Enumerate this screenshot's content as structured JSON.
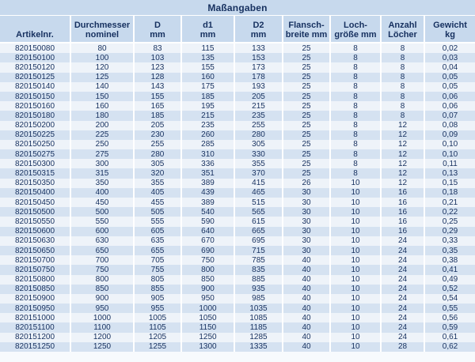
{
  "table": {
    "title": "Maßangaben",
    "columns": [
      {
        "id": "artikelnr",
        "lines": [
          "Artikelnr."
        ]
      },
      {
        "id": "durchmesser",
        "lines": [
          "Durchmesser",
          "nominel"
        ]
      },
      {
        "id": "d",
        "lines": [
          "D",
          "mm"
        ]
      },
      {
        "id": "d1",
        "lines": [
          "d1",
          "mm"
        ]
      },
      {
        "id": "d2",
        "lines": [
          "D2",
          "mm"
        ]
      },
      {
        "id": "flanschbreite",
        "lines": [
          "Flansch-",
          "breite mm"
        ]
      },
      {
        "id": "lochgroesse",
        "lines": [
          "Loch-",
          "größe mm"
        ]
      },
      {
        "id": "anzahl-loecher",
        "lines": [
          "Anzahl",
          "Löcher"
        ]
      },
      {
        "id": "gewicht",
        "lines": [
          "Gewicht",
          "kg"
        ]
      }
    ],
    "rows": [
      [
        "820150080",
        "80",
        "83",
        "115",
        "133",
        "25",
        "8",
        "8",
        "0,02"
      ],
      [
        "820150100",
        "100",
        "103",
        "135",
        "153",
        "25",
        "8",
        "8",
        "0,03"
      ],
      [
        "820150120",
        "120",
        "123",
        "155",
        "173",
        "25",
        "8",
        "8",
        "0,04"
      ],
      [
        "820150125",
        "125",
        "128",
        "160",
        "178",
        "25",
        "8",
        "8",
        "0,05"
      ],
      [
        "820150140",
        "140",
        "143",
        "175",
        "193",
        "25",
        "8",
        "8",
        "0,05"
      ],
      [
        "820150150",
        "150",
        "155",
        "185",
        "205",
        "25",
        "8",
        "8",
        "0,06"
      ],
      [
        "820150160",
        "160",
        "165",
        "195",
        "215",
        "25",
        "8",
        "8",
        "0,06"
      ],
      [
        "820150180",
        "180",
        "185",
        "215",
        "235",
        "25",
        "8",
        "8",
        "0,07"
      ],
      [
        "820150200",
        "200",
        "205",
        "235",
        "255",
        "25",
        "8",
        "12",
        "0,08"
      ],
      [
        "820150225",
        "225",
        "230",
        "260",
        "280",
        "25",
        "8",
        "12",
        "0,09"
      ],
      [
        "820150250",
        "250",
        "255",
        "285",
        "305",
        "25",
        "8",
        "12",
        "0,10"
      ],
      [
        "820150275",
        "275",
        "280",
        "310",
        "330",
        "25",
        "8",
        "12",
        "0,10"
      ],
      [
        "820150300",
        "300",
        "305",
        "336",
        "355",
        "25",
        "8",
        "12",
        "0,11"
      ],
      [
        "820150315",
        "315",
        "320",
        "351",
        "370",
        "25",
        "8",
        "12",
        "0,13"
      ],
      [
        "820150350",
        "350",
        "355",
        "389",
        "415",
        "26",
        "10",
        "12",
        "0,15"
      ],
      [
        "820150400",
        "400",
        "405",
        "439",
        "465",
        "30",
        "10",
        "16",
        "0,18"
      ],
      [
        "820150450",
        "450",
        "455",
        "389",
        "515",
        "30",
        "10",
        "16",
        "0,21"
      ],
      [
        "820150500",
        "500",
        "505",
        "540",
        "565",
        "30",
        "10",
        "16",
        "0,22"
      ],
      [
        "820150550",
        "550",
        "555",
        "590",
        "615",
        "30",
        "10",
        "16",
        "0,25"
      ],
      [
        "820150600",
        "600",
        "605",
        "640",
        "665",
        "30",
        "10",
        "16",
        "0,29"
      ],
      [
        "820150630",
        "630",
        "635",
        "670",
        "695",
        "30",
        "10",
        "24",
        "0,33"
      ],
      [
        "820150650",
        "650",
        "655",
        "690",
        "715",
        "30",
        "10",
        "24",
        "0,35"
      ],
      [
        "820150700",
        "700",
        "705",
        "750",
        "785",
        "40",
        "10",
        "24",
        "0,38"
      ],
      [
        "820150750",
        "750",
        "755",
        "800",
        "835",
        "40",
        "10",
        "24",
        "0,41"
      ],
      [
        "820150800",
        "800",
        "805",
        "850",
        "885",
        "40",
        "10",
        "24",
        "0,49"
      ],
      [
        "820150850",
        "850",
        "855",
        "900",
        "935",
        "40",
        "10",
        "24",
        "0,52"
      ],
      [
        "820150900",
        "900",
        "905",
        "950",
        "985",
        "40",
        "10",
        "24",
        "0,54"
      ],
      [
        "820150950",
        "950",
        "955",
        "1000",
        "1035",
        "40",
        "10",
        "24",
        "0,55"
      ],
      [
        "820151000",
        "1000",
        "1005",
        "1050",
        "1085",
        "40",
        "10",
        "24",
        "0,56"
      ],
      [
        "820151100",
        "1100",
        "1105",
        "1150",
        "1185",
        "40",
        "10",
        "24",
        "0,59"
      ],
      [
        "820151200",
        "1200",
        "1205",
        "1250",
        "1285",
        "40",
        "10",
        "24",
        "0,61"
      ],
      [
        "820151250",
        "1250",
        "1255",
        "1300",
        "1335",
        "40",
        "10",
        "28",
        "0,62"
      ]
    ]
  },
  "colors": {
    "header_bg": "#c7d9ed",
    "row_light": "#eef3f9",
    "row_dark": "#d5e2f1",
    "text": "#16305f",
    "separator": "#ffffff",
    "footer_bg": "#f7fafd"
  }
}
